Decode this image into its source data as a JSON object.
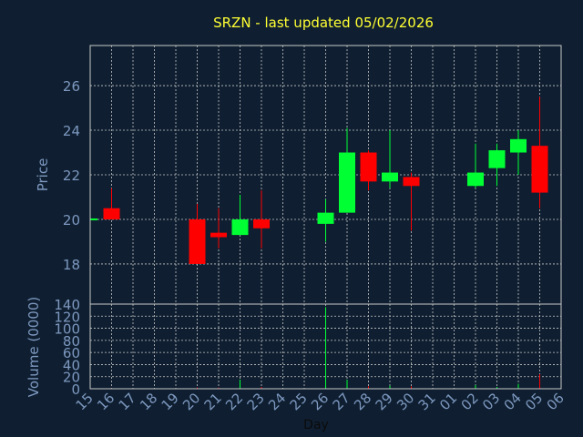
{
  "chart_data": {
    "type": "candlestick",
    "title": "SRZN - last updated 05/02/2026",
    "xlabel": "Day",
    "x_tick_labels": [
      "15",
      "16",
      "17",
      "18",
      "19",
      "20",
      "21",
      "22",
      "23",
      "24",
      "25",
      "26",
      "27",
      "28",
      "29",
      "30",
      "31",
      "01",
      "02",
      "03",
      "04",
      "05",
      "06"
    ],
    "price_panel": {
      "ylabel": "Price",
      "ylim": [
        16.2,
        27.8
      ],
      "yticks": [
        18,
        20,
        22,
        24,
        26
      ],
      "grid": true
    },
    "volume_panel": {
      "ylabel": "Volume (0000)",
      "ylim": [
        0,
        140
      ],
      "yticks": [
        0,
        20,
        40,
        60,
        80,
        100,
        120,
        140
      ],
      "grid": true
    },
    "colors": {
      "background": "#0f1f31",
      "up": "#00ff33",
      "down": "#ff0000",
      "grid": "#c8c8c8",
      "title": "#ffff33",
      "axis_text": "#7d98bf"
    },
    "candles": [
      {
        "day": "15",
        "open": 20.0,
        "high": 20.0,
        "low": 20.0,
        "close": 20.0,
        "volume": 0
      },
      {
        "day": "16",
        "open": 20.5,
        "high": 21.4,
        "low": 20.0,
        "close": 20.0,
        "volume": 1
      },
      {
        "day": "20",
        "open": 20.0,
        "high": 20.7,
        "low": 18.0,
        "close": 18.0,
        "volume": 2
      },
      {
        "day": "21",
        "open": 19.4,
        "high": 20.5,
        "low": 18.7,
        "close": 19.2,
        "volume": 2
      },
      {
        "day": "22",
        "open": 19.3,
        "high": 21.1,
        "low": 19.3,
        "close": 20.0,
        "volume": 15
      },
      {
        "day": "23",
        "open": 20.0,
        "high": 21.3,
        "low": 18.7,
        "close": 19.6,
        "volume": 3
      },
      {
        "day": "26",
        "open": 19.8,
        "high": 20.9,
        "low": 19.0,
        "close": 20.3,
        "volume": 135
      },
      {
        "day": "27",
        "open": 20.3,
        "high": 24.1,
        "low": 20.3,
        "close": 23.0,
        "volume": 15
      },
      {
        "day": "28",
        "open": 23.0,
        "high": 23.1,
        "low": 21.3,
        "close": 21.7,
        "volume": 4
      },
      {
        "day": "29",
        "open": 21.7,
        "high": 24.0,
        "low": 21.4,
        "close": 22.1,
        "volume": 5
      },
      {
        "day": "30",
        "open": 21.9,
        "high": 22.1,
        "low": 19.5,
        "close": 21.5,
        "volume": 4
      },
      {
        "day": "02",
        "open": 21.5,
        "high": 23.4,
        "low": 21.4,
        "close": 22.1,
        "volume": 6
      },
      {
        "day": "03",
        "open": 22.3,
        "high": 23.4,
        "low": 21.5,
        "close": 23.1,
        "volume": 3
      },
      {
        "day": "04",
        "open": 23.0,
        "high": 24.0,
        "low": 22.0,
        "close": 23.6,
        "volume": 8
      },
      {
        "day": "05",
        "open": 23.3,
        "high": 25.5,
        "low": 20.5,
        "close": 21.2,
        "volume": 24
      }
    ]
  }
}
